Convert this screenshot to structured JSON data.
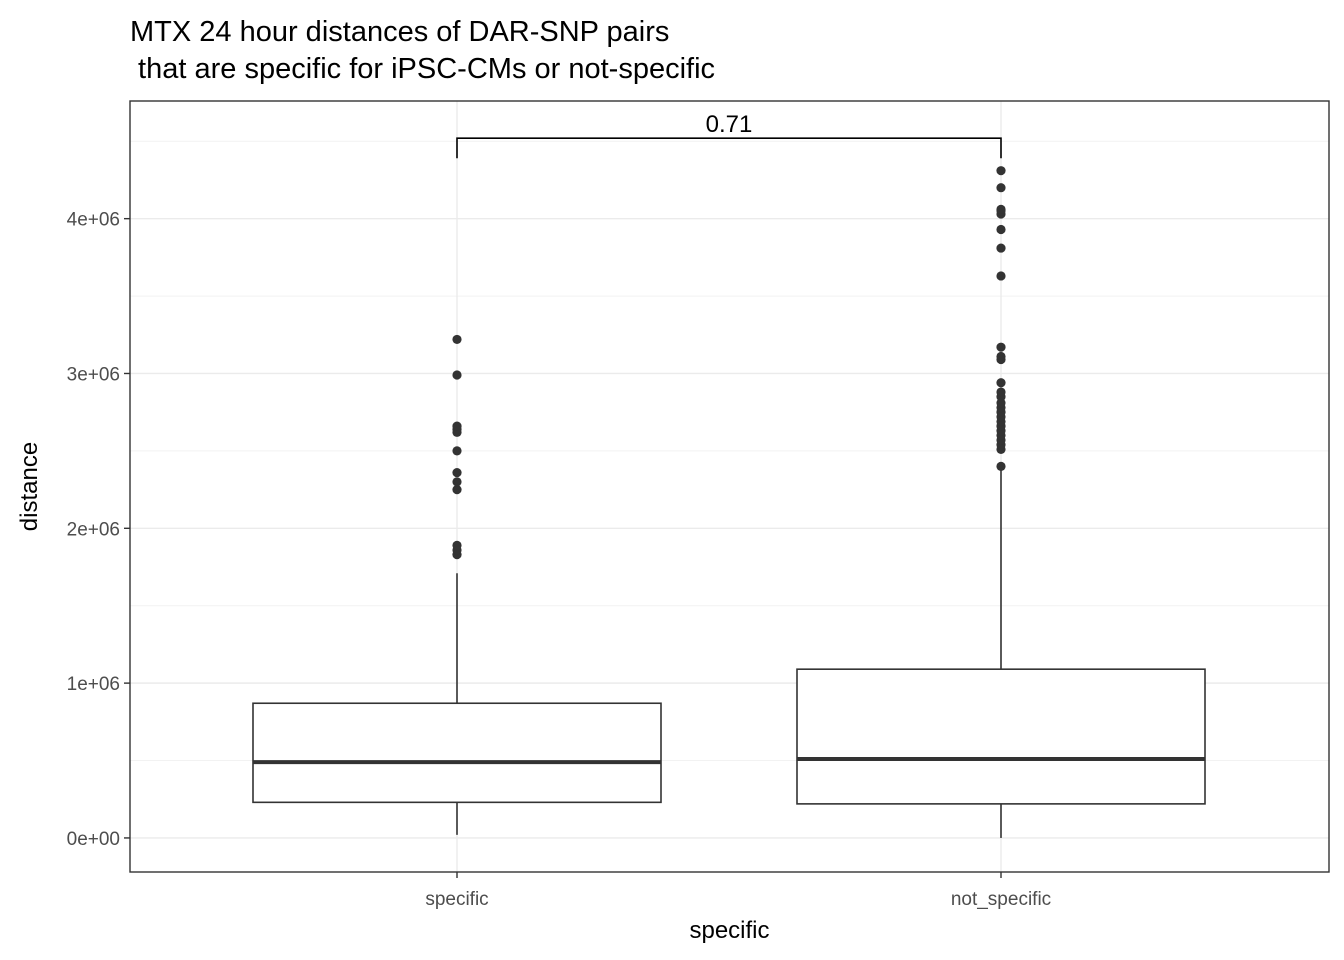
{
  "chart_data": {
    "type": "boxplot",
    "title_line1": "MTX 24 hour distances of DAR-SNP pairs",
    "title_line2": " that are specific for iPSC-CMs or not-specific",
    "xlabel": "specific",
    "ylabel": "distance",
    "ylim": [
      -220000,
      4760000
    ],
    "y_ticks": [
      0,
      1000000,
      2000000,
      3000000,
      4000000
    ],
    "y_tick_labels": [
      "0e+00",
      "1e+06",
      "2e+06",
      "3e+06",
      "4e+06"
    ],
    "grid": true,
    "categories": [
      "specific",
      "not_specific"
    ],
    "boxes": [
      {
        "category": "specific",
        "min": 20000,
        "q1": 230000,
        "median": 490000,
        "q3": 870000,
        "max": 1710000,
        "outliers": [
          1830000,
          1860000,
          1890000,
          2250000,
          2300000,
          2360000,
          2500000,
          2620000,
          2640000,
          2660000,
          2990000,
          3220000
        ]
      },
      {
        "category": "not_specific",
        "min": 0,
        "q1": 220000,
        "median": 510000,
        "q3": 1090000,
        "max": 2390000,
        "outliers": [
          2400000,
          2510000,
          2540000,
          2570000,
          2600000,
          2630000,
          2660000,
          2690000,
          2720000,
          2750000,
          2780000,
          2810000,
          2850000,
          2880000,
          2940000,
          3090000,
          3110000,
          3170000,
          3630000,
          3810000,
          3930000,
          4030000,
          4050000,
          4060000,
          4200000,
          4310000
        ]
      }
    ],
    "comparison": {
      "from": "specific",
      "to": "not_specific",
      "label": "0.71",
      "y": 4520000,
      "tip_y": 4390000
    }
  }
}
